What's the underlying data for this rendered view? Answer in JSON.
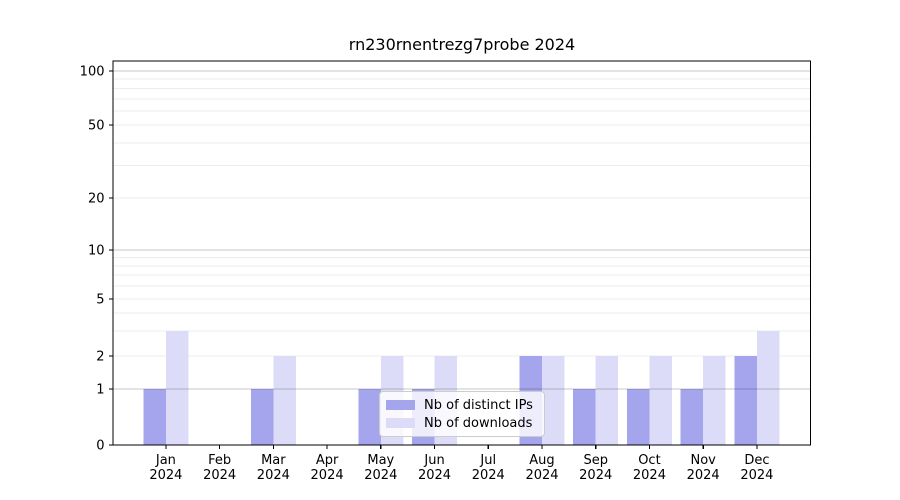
{
  "figure": {
    "background": "#ffffff"
  },
  "chart_data": {
    "type": "bar",
    "title": "rn230rnentrezg7probe 2024",
    "categories": [
      "Jan",
      "Feb",
      "Mar",
      "Apr",
      "May",
      "Jun",
      "Jul",
      "Aug",
      "Sep",
      "Oct",
      "Nov",
      "Dec"
    ],
    "year_label": "2024",
    "series": [
      {
        "name": "Nb of distinct IPs",
        "color": "#a5a5ee",
        "values": [
          1,
          0,
          1,
          0,
          1,
          1,
          0,
          2,
          1,
          1,
          1,
          2
        ]
      },
      {
        "name": "Nb of downloads",
        "color": "#dcdcf8",
        "values": [
          3,
          0,
          2,
          0,
          2,
          2,
          0,
          2,
          2,
          2,
          2,
          3
        ]
      }
    ],
    "xlabel": "",
    "ylabel": "",
    "yscale": "symlog",
    "y_tick_labels": [
      0,
      1,
      2,
      5,
      10,
      20,
      50,
      100
    ],
    "y_decade_lines": [
      1,
      10,
      100
    ],
    "y_minor_lines": [
      2,
      3,
      4,
      5,
      6,
      7,
      8,
      9,
      20,
      30,
      40,
      50,
      60,
      70,
      80,
      90
    ],
    "ylim": [
      0,
      113
    ],
    "grid": "horizontal",
    "legend_position": "lower center"
  },
  "colors": {
    "spine": "#000000",
    "tick": "#000000",
    "text": "#000000",
    "grid_decade": "#c7c7c7",
    "grid_minor": "#ededed",
    "legend_border": "#cccccc",
    "legend_bg": "rgba(255,255,255,0.8)"
  }
}
